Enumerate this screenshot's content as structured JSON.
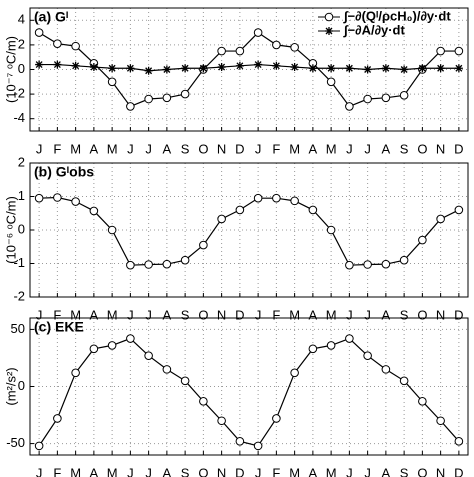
{
  "chart_data": [
    {
      "type": "line",
      "title": "(a) Gᴵ",
      "y_label": "(10⁻⁷ ᵒC/m)",
      "categories": [
        "J",
        "F",
        "M",
        "A",
        "M",
        "J",
        "J",
        "A",
        "S",
        "O",
        "N",
        "D",
        "J",
        "F",
        "M",
        "A",
        "M",
        "J",
        "J",
        "A",
        "S",
        "O",
        "N",
        "D"
      ],
      "series": [
        {
          "name": "∫−∂(Qᴵ/ρcH₀)/∂y·dt",
          "color": "#000000",
          "marker": "circle",
          "values": [
            3.0,
            2.1,
            1.9,
            0.5,
            -1.0,
            -3.0,
            -2.4,
            -2.3,
            -2.0,
            0.0,
            1.5,
            1.5,
            3.0,
            2.0,
            1.8,
            0.5,
            -1.0,
            -3.0,
            -2.4,
            -2.3,
            -2.1,
            0.0,
            1.5,
            1.5
          ]
        },
        {
          "name": "∫−∂A/∂y·dt",
          "color": "#000000",
          "marker": "star",
          "values": [
            0.4,
            0.4,
            0.3,
            0.2,
            0.1,
            0.1,
            -0.1,
            0.0,
            0.1,
            0.1,
            0.2,
            0.3,
            0.4,
            0.3,
            0.2,
            0.1,
            0.1,
            0.1,
            0.0,
            0.1,
            0.0,
            0.1,
            0.1,
            0.1
          ]
        }
      ],
      "ylim": [
        -5,
        5
      ],
      "yticks": [
        -4,
        -2,
        0,
        2,
        4
      ],
      "grid": true,
      "legend": "upper right"
    },
    {
      "type": "line",
      "title": "(b) Gᴵobs",
      "y_label": "(10⁻⁶ ᵒC/m)",
      "categories": [
        "J",
        "F",
        "M",
        "A",
        "M",
        "J",
        "J",
        "A",
        "S",
        "O",
        "N",
        "D",
        "J",
        "F",
        "M",
        "A",
        "M",
        "J",
        "J",
        "A",
        "S",
        "O",
        "N",
        "D"
      ],
      "series": [
        {
          "color": "#000000",
          "marker": "circle",
          "values": [
            0.95,
            0.97,
            0.85,
            0.57,
            0.0,
            -1.05,
            -1.03,
            -1.02,
            -0.9,
            -0.45,
            0.33,
            0.6,
            0.95,
            0.95,
            0.87,
            0.6,
            0.0,
            -1.05,
            -1.03,
            -1.02,
            -0.9,
            -0.3,
            0.33,
            0.6
          ]
        }
      ],
      "ylim": [
        -2,
        2
      ],
      "yticks": [
        -2,
        -1,
        0,
        1,
        2
      ],
      "grid": true
    },
    {
      "type": "line",
      "title": "(c) EKE",
      "y_label": "(m²/s²)",
      "categories": [
        "J",
        "F",
        "M",
        "A",
        "M",
        "J",
        "J",
        "A",
        "S",
        "O",
        "N",
        "D",
        "J",
        "F",
        "M",
        "A",
        "M",
        "J",
        "J",
        "A",
        "S",
        "O",
        "N",
        "D"
      ],
      "series": [
        {
          "color": "#000000",
          "marker": "circle",
          "values": [
            -52,
            -28,
            12,
            33,
            36,
            42,
            27,
            15,
            5,
            -13,
            -30,
            -48,
            -52,
            -28,
            12,
            33,
            36,
            42,
            27,
            15,
            5,
            -13,
            -30,
            -48
          ]
        }
      ],
      "ylim": [
        -60,
        60
      ],
      "yticks": [
        -50,
        0,
        50
      ],
      "grid": true
    }
  ]
}
